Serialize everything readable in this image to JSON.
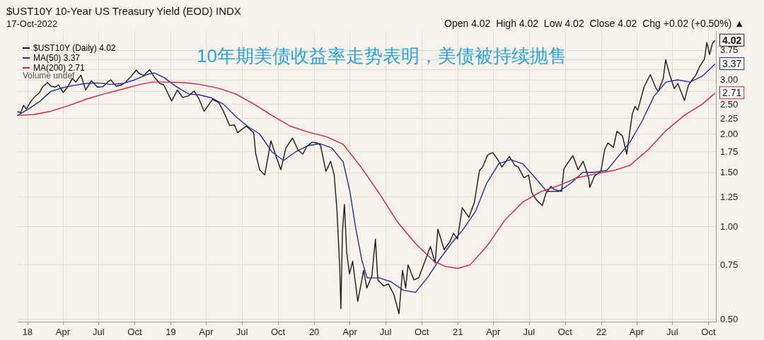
{
  "chart_data": {
    "type": "line",
    "title": "$UST10Y 10-Year US Treasury Yield (EOD) INDX",
    "subtitle": "17-Oct-2022",
    "annotations": [
      "Open 4.02  High 4.02  Low 4.02  Close 4.02  Chg +0.02 (+0.50%) ▲",
      "Volume undef",
      "10年期美债收益率走势表明，美债被持续抛售",
      {
        "text": "4.02",
        "x": "2022-10-17",
        "y": 4.02
      },
      {
        "text": "3.37",
        "x": "2022-10-17",
        "y": 3.37
      },
      {
        "text": "2.71",
        "x": "2022-10-17",
        "y": 2.71
      }
    ],
    "log": "y",
    "grid": true,
    "legend": "top left",
    "marker": "none",
    "line_style": "solid",
    "xlim": [
      "2017-12-07",
      "2022-10-20"
    ],
    "xticks": [
      {
        "value": "2018-01-01",
        "label": "18"
      },
      {
        "value": "2018-04-01",
        "label": "Apr"
      },
      {
        "value": "2018-07-01",
        "label": "Jul"
      },
      {
        "value": "2018-10-01",
        "label": "Oct"
      },
      {
        "value": "2019-01-01",
        "label": "19"
      },
      {
        "value": "2019-04-01",
        "label": "Apr"
      },
      {
        "value": "2019-07-01",
        "label": "Jul"
      },
      {
        "value": "2019-10-01",
        "label": "Oct"
      },
      {
        "value": "2020-01-01",
        "label": "20"
      },
      {
        "value": "2020-04-01",
        "label": "Apr"
      },
      {
        "value": "2020-07-01",
        "label": "Jul"
      },
      {
        "value": "2020-10-01",
        "label": "Oct"
      },
      {
        "value": "2021-01-01",
        "label": "21"
      },
      {
        "value": "2021-04-01",
        "label": "Apr"
      },
      {
        "value": "2021-07-01",
        "label": "Jul"
      },
      {
        "value": "2021-10-01",
        "label": "Oct"
      },
      {
        "value": "2022-01-01",
        "label": "22"
      },
      {
        "value": "2022-04-01",
        "label": "Apr"
      },
      {
        "value": "2022-07-01",
        "label": "Jul"
      },
      {
        "value": "2022-10-01",
        "label": "Oct"
      }
    ],
    "ylim": [
      0.49,
      4.3
    ],
    "yticks": [
      {
        "value": 0.5,
        "label": "0.50"
      },
      {
        "value": 0.75,
        "label": "0.75"
      },
      {
        "value": 1,
        "label": "1.00"
      },
      {
        "value": 1.25,
        "label": "1.25"
      },
      {
        "value": 1.5,
        "label": "1.50"
      },
      {
        "value": 1.75,
        "label": "1.75"
      },
      {
        "value": 2,
        "label": "2.00"
      },
      {
        "value": 2.25,
        "label": "2.25"
      },
      {
        "value": 2.5,
        "label": "2.50"
      },
      {
        "value": 2.75,
        "label": null
      },
      {
        "value": 3,
        "label": "3.00"
      },
      {
        "value": 3.25,
        "label": null
      },
      {
        "value": 3.5,
        "label": null
      },
      {
        "value": 3.75,
        "label": "3.75"
      }
    ],
    "series": [
      {
        "name": "$UST10Y (Daily) 4.02",
        "color": "#1a1a1a",
        "x": [
          "2017-12-07",
          "2017-12-15",
          "2017-12-22",
          "2017-12-29",
          "2018-01-09",
          "2018-01-19",
          "2018-01-31",
          "2018-02-08",
          "2018-02-21",
          "2018-03-02",
          "2018-03-13",
          "2018-03-21",
          "2018-04-02",
          "2018-04-12",
          "2018-04-25",
          "2018-05-04",
          "2018-05-17",
          "2018-05-29",
          "2018-06-13",
          "2018-06-28",
          "2018-07-12",
          "2018-07-24",
          "2018-08-01",
          "2018-08-15",
          "2018-08-29",
          "2018-09-07",
          "2018-09-21",
          "2018-10-05",
          "2018-10-12",
          "2018-10-24",
          "2018-11-08",
          "2018-11-20",
          "2018-12-04",
          "2018-12-14",
          "2019-01-03",
          "2019-01-18",
          "2019-01-31",
          "2019-02-15",
          "2019-03-01",
          "2019-03-13",
          "2019-03-27",
          "2019-04-17",
          "2019-05-03",
          "2019-05-15",
          "2019-05-31",
          "2019-06-12",
          "2019-06-20",
          "2019-07-12",
          "2019-07-31",
          "2019-08-05",
          "2019-08-15",
          "2019-08-28",
          "2019-09-13",
          "2019-09-26",
          "2019-10-08",
          "2019-10-21",
          "2019-11-07",
          "2019-11-21",
          "2019-12-03",
          "2019-12-13",
          "2019-12-27",
          "2020-01-08",
          "2020-01-17",
          "2020-01-31",
          "2020-02-12",
          "2020-02-21",
          "2020-02-28",
          "2020-03-06",
          "2020-03-09",
          "2020-03-13",
          "2020-03-18",
          "2020-03-24",
          "2020-03-31",
          "2020-04-08",
          "2020-04-21",
          "2020-05-06",
          "2020-05-14",
          "2020-05-27",
          "2020-06-05",
          "2020-06-11",
          "2020-06-26",
          "2020-07-08",
          "2020-07-22",
          "2020-08-04",
          "2020-08-13",
          "2020-08-21",
          "2020-08-27",
          "2020-09-11",
          "2020-09-23",
          "2020-10-09",
          "2020-10-23",
          "2020-11-04",
          "2020-11-11",
          "2020-11-27",
          "2020-12-11",
          "2020-12-21",
          "2020-12-31",
          "2021-01-12",
          "2021-01-29",
          "2021-02-12",
          "2021-02-25",
          "2021-03-05",
          "2021-03-18",
          "2021-03-31",
          "2021-04-14",
          "2021-04-23",
          "2021-05-12",
          "2021-05-26",
          "2021-06-04",
          "2021-06-18",
          "2021-06-30",
          "2021-07-08",
          "2021-07-20",
          "2021-08-04",
          "2021-08-13",
          "2021-08-26",
          "2021-09-03",
          "2021-09-22",
          "2021-09-28",
          "2021-10-08",
          "2021-10-21",
          "2021-11-03",
          "2021-11-16",
          "2021-11-30",
          "2021-12-03",
          "2021-12-15",
          "2021-12-31",
          "2022-01-10",
          "2022-01-18",
          "2022-02-01",
          "2022-02-10",
          "2022-02-24",
          "2022-03-07",
          "2022-03-21",
          "2022-03-28",
          "2022-04-04",
          "2022-04-20",
          "2022-05-06",
          "2022-05-19",
          "2022-05-26",
          "2022-06-08",
          "2022-06-14",
          "2022-06-24",
          "2022-07-06",
          "2022-07-15",
          "2022-08-01",
          "2022-08-11",
          "2022-08-19",
          "2022-08-30",
          "2022-09-09",
          "2022-09-21",
          "2022-09-27",
          "2022-10-04",
          "2022-10-11",
          "2022-10-17"
        ],
        "values": [
          2.36,
          2.35,
          2.48,
          2.41,
          2.55,
          2.64,
          2.72,
          2.84,
          2.94,
          2.86,
          2.84,
          2.89,
          2.73,
          2.83,
          3.03,
          2.95,
          3.11,
          2.78,
          2.98,
          2.84,
          2.85,
          2.95,
          3.0,
          2.86,
          2.89,
          2.94,
          3.07,
          3.23,
          3.15,
          3.1,
          3.24,
          3.06,
          2.92,
          2.89,
          2.56,
          2.78,
          2.63,
          2.66,
          2.76,
          2.61,
          2.37,
          2.59,
          2.53,
          2.37,
          2.13,
          2.14,
          2.02,
          2.12,
          2.02,
          1.73,
          1.53,
          1.47,
          1.9,
          1.69,
          1.53,
          1.8,
          1.94,
          1.77,
          1.72,
          1.82,
          1.88,
          1.87,
          1.84,
          1.51,
          1.63,
          1.47,
          1.13,
          0.74,
          0.54,
          0.96,
          1.18,
          0.82,
          0.7,
          0.77,
          0.57,
          0.72,
          0.63,
          0.69,
          0.91,
          0.67,
          0.64,
          0.65,
          0.6,
          0.52,
          0.72,
          0.63,
          0.75,
          0.67,
          0.68,
          0.77,
          0.86,
          0.76,
          0.98,
          0.84,
          0.89,
          0.95,
          0.91,
          1.15,
          1.07,
          1.2,
          1.52,
          1.56,
          1.71,
          1.74,
          1.64,
          1.56,
          1.69,
          1.58,
          1.56,
          1.44,
          1.47,
          1.29,
          1.22,
          1.17,
          1.28,
          1.35,
          1.32,
          1.3,
          1.54,
          1.61,
          1.7,
          1.53,
          1.63,
          1.44,
          1.34,
          1.46,
          1.51,
          1.78,
          1.87,
          1.81,
          2.04,
          1.97,
          1.72,
          2.32,
          2.46,
          2.39,
          2.84,
          3.12,
          2.84,
          2.75,
          3.03,
          3.49,
          3.13,
          2.81,
          2.92,
          2.57,
          2.88,
          2.98,
          3.11,
          3.32,
          3.51,
          3.97,
          3.63,
          3.94,
          4.02
        ]
      },
      {
        "name": "MA(50) 3.37",
        "color": "#1f2fa0",
        "x": [
          "2017-12-07",
          "2018-01-01",
          "2018-02-01",
          "2018-03-01",
          "2018-04-01",
          "2018-05-01",
          "2018-06-01",
          "2018-07-01",
          "2018-08-01",
          "2018-09-01",
          "2018-10-01",
          "2018-11-01",
          "2018-11-20",
          "2018-12-15",
          "2019-01-15",
          "2019-02-15",
          "2019-03-15",
          "2019-04-15",
          "2019-05-15",
          "2019-06-15",
          "2019-07-15",
          "2019-08-15",
          "2019-09-15",
          "2019-10-15",
          "2019-11-15",
          "2019-12-15",
          "2020-01-15",
          "2020-02-15",
          "2020-03-15",
          "2020-04-01",
          "2020-04-15",
          "2020-05-01",
          "2020-05-15",
          "2020-06-15",
          "2020-07-15",
          "2020-08-15",
          "2020-09-15",
          "2020-10-15",
          "2020-11-15",
          "2020-12-15",
          "2021-01-15",
          "2021-02-15",
          "2021-03-15",
          "2021-04-15",
          "2021-05-15",
          "2021-06-15",
          "2021-07-15",
          "2021-08-15",
          "2021-09-15",
          "2021-10-15",
          "2021-11-15",
          "2021-12-15",
          "2022-01-15",
          "2022-02-15",
          "2022-03-15",
          "2022-04-15",
          "2022-05-15",
          "2022-06-15",
          "2022-07-15",
          "2022-08-15",
          "2022-09-15",
          "2022-10-17"
        ],
        "values": [
          2.3,
          2.4,
          2.55,
          2.75,
          2.83,
          2.88,
          2.92,
          2.93,
          2.9,
          2.92,
          3.0,
          3.12,
          3.16,
          3.05,
          2.85,
          2.7,
          2.68,
          2.62,
          2.5,
          2.28,
          2.12,
          2.0,
          1.75,
          1.64,
          1.75,
          1.83,
          1.86,
          1.8,
          1.62,
          1.3,
          1.0,
          0.78,
          0.68,
          0.68,
          0.66,
          0.62,
          0.61,
          0.68,
          0.78,
          0.88,
          0.98,
          1.12,
          1.38,
          1.6,
          1.65,
          1.6,
          1.45,
          1.3,
          1.3,
          1.38,
          1.5,
          1.5,
          1.52,
          1.7,
          1.88,
          2.2,
          2.65,
          2.95,
          3.0,
          2.95,
          3.08,
          3.37
        ]
      },
      {
        "name": "MA(200) 2.71",
        "color": "#d62048",
        "x": [
          "2017-12-07",
          "2018-01-15",
          "2018-03-01",
          "2018-04-15",
          "2018-06-01",
          "2018-07-15",
          "2018-09-01",
          "2018-10-15",
          "2018-11-15",
          "2018-12-15",
          "2019-02-01",
          "2019-03-15",
          "2019-05-01",
          "2019-06-15",
          "2019-08-01",
          "2019-09-15",
          "2019-11-01",
          "2019-12-15",
          "2020-02-01",
          "2020-03-15",
          "2020-05-01",
          "2020-06-15",
          "2020-08-01",
          "2020-09-15",
          "2020-11-01",
          "2020-12-01",
          "2021-01-01",
          "2021-02-01",
          "2021-03-15",
          "2021-05-01",
          "2021-06-15",
          "2021-08-01",
          "2021-09-15",
          "2021-11-01",
          "2021-12-15",
          "2022-02-01",
          "2022-03-15",
          "2022-05-01",
          "2022-06-15",
          "2022-08-01",
          "2022-09-15",
          "2022-10-17"
        ],
        "values": [
          2.3,
          2.31,
          2.37,
          2.47,
          2.6,
          2.7,
          2.8,
          2.9,
          2.95,
          2.95,
          2.94,
          2.9,
          2.82,
          2.7,
          2.5,
          2.3,
          2.12,
          2.03,
          1.96,
          1.85,
          1.55,
          1.28,
          1.03,
          0.88,
          0.77,
          0.74,
          0.73,
          0.75,
          0.86,
          1.05,
          1.2,
          1.3,
          1.36,
          1.44,
          1.48,
          1.52,
          1.58,
          1.78,
          2.05,
          2.3,
          2.5,
          2.71
        ]
      }
    ]
  }
}
